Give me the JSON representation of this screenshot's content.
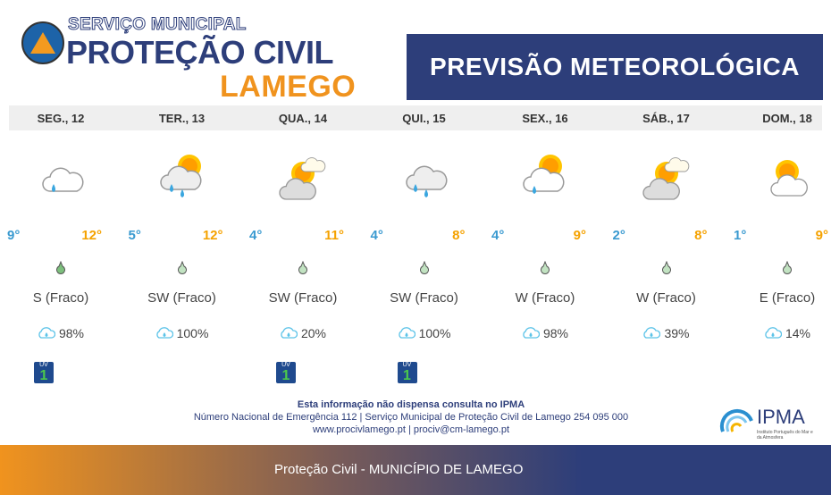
{
  "header": {
    "service": "SERVIÇO MUNICIPAL",
    "title": "PROTEÇÃO CIVIL",
    "city": "LAMEGO",
    "banner": "PREVISÃO METEOROLÓGICA"
  },
  "days": [
    {
      "name": "SEG., 12",
      "icon": "cloud-light-rain",
      "min": "9°",
      "max": "12°",
      "wind": "S (Fraco)",
      "precip": "98%",
      "uv": "1",
      "drop_color": "#7dbf7d"
    },
    {
      "name": "TER., 13",
      "icon": "sun-cloud-rain",
      "min": "5°",
      "max": "12°",
      "wind": "SW (Fraco)",
      "precip": "100%",
      "uv": null,
      "drop_color": "#c2e3c2"
    },
    {
      "name": "QUA., 14",
      "icon": "sun-clouds",
      "min": "4°",
      "max": "11°",
      "wind": "SW (Fraco)",
      "precip": "20%",
      "uv": "1",
      "drop_color": "#c2e3c2"
    },
    {
      "name": "QUI., 15",
      "icon": "cloud-rain",
      "min": "4°",
      "max": "8°",
      "wind": "SW (Fraco)",
      "precip": "100%",
      "uv": "1",
      "drop_color": "#c2e3c2"
    },
    {
      "name": "SEX., 16",
      "icon": "sun-cloud-light-rain",
      "min": "4°",
      "max": "9°",
      "wind": "W (Fraco)",
      "precip": "98%",
      "uv": null,
      "drop_color": "#c2e3c2"
    },
    {
      "name": "SÁB., 17",
      "icon": "sun-clouds",
      "min": "2°",
      "max": "8°",
      "wind": "W (Fraco)",
      "precip": "39%",
      "uv": null,
      "drop_color": "#c2e3c2"
    },
    {
      "name": "DOM., 18",
      "icon": "sun-cloud",
      "min": "1°",
      "max": "9°",
      "wind": "E (Fraco)",
      "precip": "14%",
      "uv": null,
      "drop_color": "#c2e3c2"
    }
  ],
  "uv_label": "UV",
  "footer": {
    "line1": "Esta informação não dispensa consulta no IPMA",
    "line2": "Número Nacional de Emergência 112 | Serviço Municipal de Proteção Civil de Lamego 254 095 000",
    "line3": "www.procivlamego.pt | prociv@cm-lamego.pt",
    "ipma": "IPMA",
    "ipma_sub": "Instituto Português do Mar e da Atmosfera",
    "bar": "Proteção Civil - MUNICÍPIO DE LAMEGO"
  },
  "colors": {
    "navy": "#2d3e7a",
    "orange": "#f0931e",
    "min_temp": "#3a9ad0",
    "max_temp": "#f5a200"
  }
}
